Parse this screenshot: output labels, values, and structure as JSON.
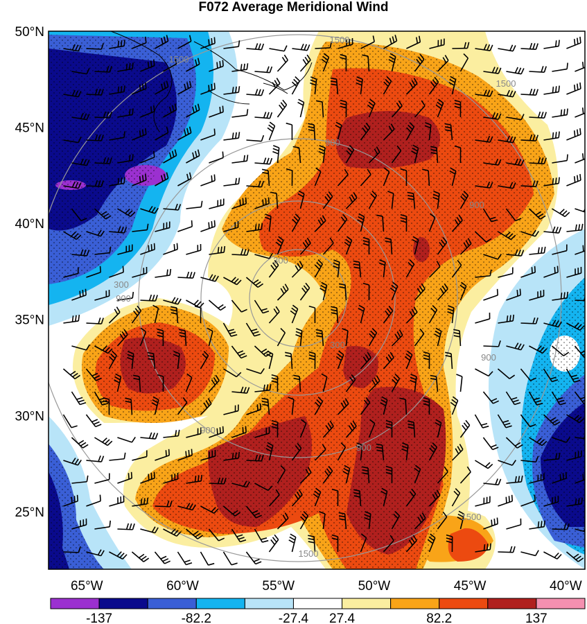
{
  "title": "F072 Average Meridional Wind",
  "map": {
    "lon_range": [
      -67,
      -39
    ],
    "lat_range": [
      22,
      50
    ],
    "lat_labels": [
      {
        "value": 50,
        "text": "50°N"
      },
      {
        "value": 45,
        "text": "45°N"
      },
      {
        "value": 40,
        "text": "40°N"
      },
      {
        "value": 35,
        "text": "35°N"
      },
      {
        "value": 30,
        "text": "30°N"
      },
      {
        "value": 25,
        "text": "25°N"
      }
    ],
    "lon_labels": [
      {
        "value": -65,
        "text": "65°W"
      },
      {
        "value": -60,
        "text": "60°W"
      },
      {
        "value": -55,
        "text": "55°W"
      },
      {
        "value": -50,
        "text": "50°W"
      },
      {
        "value": -45,
        "text": "45°W"
      },
      {
        "value": -40,
        "text": "40°W"
      }
    ],
    "range_ring_labels": [
      "1500",
      "1500",
      "900",
      "900",
      "900",
      "900",
      "900",
      "900",
      "300",
      "300",
      "300",
      "1500",
      "1500",
      "1500"
    ]
  },
  "colorbar": {
    "colors": [
      "#9b30d0",
      "#0a0a8c",
      "#3a5fd6",
      "#14b4f0",
      "#b8e4f8",
      "#ffffff",
      "#fbeea0",
      "#f9a418",
      "#ec4a10",
      "#b0201e",
      "#f490b0"
    ],
    "labels": [
      "-137",
      "-82.2",
      "-27.4",
      "27.4",
      "82.2",
      "137"
    ]
  },
  "icons": {
    "wind": "wind-barb-icon"
  }
}
